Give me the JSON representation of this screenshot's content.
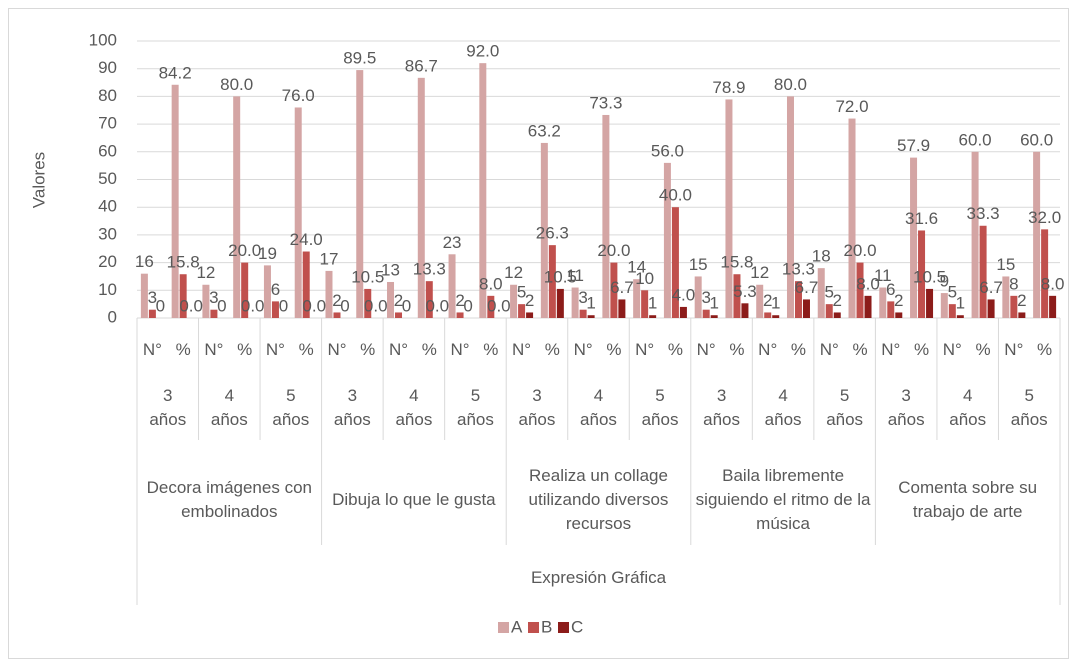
{
  "chart_data": {
    "type": "bar",
    "y_axis_label": "Valores",
    "categories": [
      "N°",
      "%",
      "N°",
      "%",
      "N°",
      "%",
      "N°",
      "%",
      "N°",
      "%",
      "N°",
      "%",
      "N°",
      "%",
      "N°",
      "%",
      "N°",
      "%",
      "N°",
      "%",
      "N°",
      "%",
      "N°",
      "%",
      "N°",
      "%",
      "N°",
      "%",
      "N°",
      "%"
    ],
    "age_groups": [
      "3 años",
      "4 años",
      "5 años",
      "3 años",
      "4 años",
      "5 años",
      "3 años",
      "4 años",
      "5 años",
      "3 años",
      "4 años",
      "5 años",
      "3 años",
      "4 años",
      "5 años"
    ],
    "activity_groups": [
      "Decora imágenes con embolinados",
      "Dibuja lo que le gusta",
      "Realiza un collage utilizando diversos recursos",
      "Baila libremente siguiendo el ritmo de la música",
      "Comenta sobre su trabajo de arte"
    ],
    "top_group": "Expresión Gráfica",
    "series": [
      {
        "name": "A",
        "color": "#d4a5a4",
        "values": [
          16,
          84.2,
          12,
          80,
          19,
          76,
          17,
          89.5,
          13,
          86.7,
          23,
          92,
          12,
          63.2,
          11,
          73.3,
          14,
          56,
          15,
          78.9,
          12,
          80,
          18,
          72,
          11,
          57.9,
          9,
          60,
          15,
          60
        ],
        "value_labels": [
          "16",
          "84.2",
          "12",
          "80.0",
          "19",
          "76.0",
          "17",
          "89.5",
          "13",
          "86.7",
          "23",
          "92.0",
          "12",
          "63.2",
          "11",
          "73.3",
          "14",
          "56.0",
          "15",
          "78.9",
          "12",
          "80.0",
          "18",
          "72.0",
          "11",
          "57.9",
          "9",
          "60.0",
          "15",
          "60.0"
        ]
      },
      {
        "name": "B",
        "color": "#c0504d",
        "values": [
          3,
          15.8,
          3,
          20,
          6,
          24,
          2,
          10.5,
          2,
          13.3,
          2,
          8,
          5,
          26.3,
          3,
          20,
          10,
          40,
          3,
          15.8,
          2,
          13.3,
          5,
          20,
          6,
          31.6,
          5,
          33.3,
          8,
          32
        ],
        "value_labels": [
          "3",
          "15.8",
          "3",
          "20.0",
          "6",
          "24.0",
          "2",
          "10.5",
          "2",
          "13.3",
          "2",
          "8.0",
          "5",
          "26.3",
          "3",
          "20.0",
          "10",
          "40.0",
          "3",
          "15.8",
          "2",
          "13.3",
          "5",
          "20.0",
          "6",
          "31.6",
          "5",
          "33.3",
          "8",
          "32.0"
        ]
      },
      {
        "name": "C",
        "color": "#8c1c1a",
        "values": [
          0,
          0,
          0,
          0,
          0,
          0,
          0,
          0,
          0,
          0,
          0,
          0,
          2,
          10.5,
          1,
          6.7,
          1,
          4,
          1,
          5.3,
          1,
          6.7,
          2,
          8,
          2,
          10.5,
          1,
          6.7,
          2,
          8
        ],
        "value_labels": [
          "0",
          "0.0",
          "0",
          "0.0",
          "0",
          "0.0",
          "0",
          "0.0",
          "0",
          "0.0",
          "0",
          "0.0",
          "2",
          "10.5",
          "1",
          "6.7",
          "1",
          "4.0",
          "1",
          "5.3",
          "1",
          "6.7",
          "2",
          "8.0",
          "2",
          "10.5",
          "1",
          "6.7",
          "2",
          "8.0"
        ]
      }
    ],
    "ylim": [
      0,
      100
    ],
    "yticks": [
      0,
      10,
      20,
      30,
      40,
      50,
      60,
      70,
      80,
      90,
      100
    ],
    "grid": true,
    "legend": "bottom"
  }
}
